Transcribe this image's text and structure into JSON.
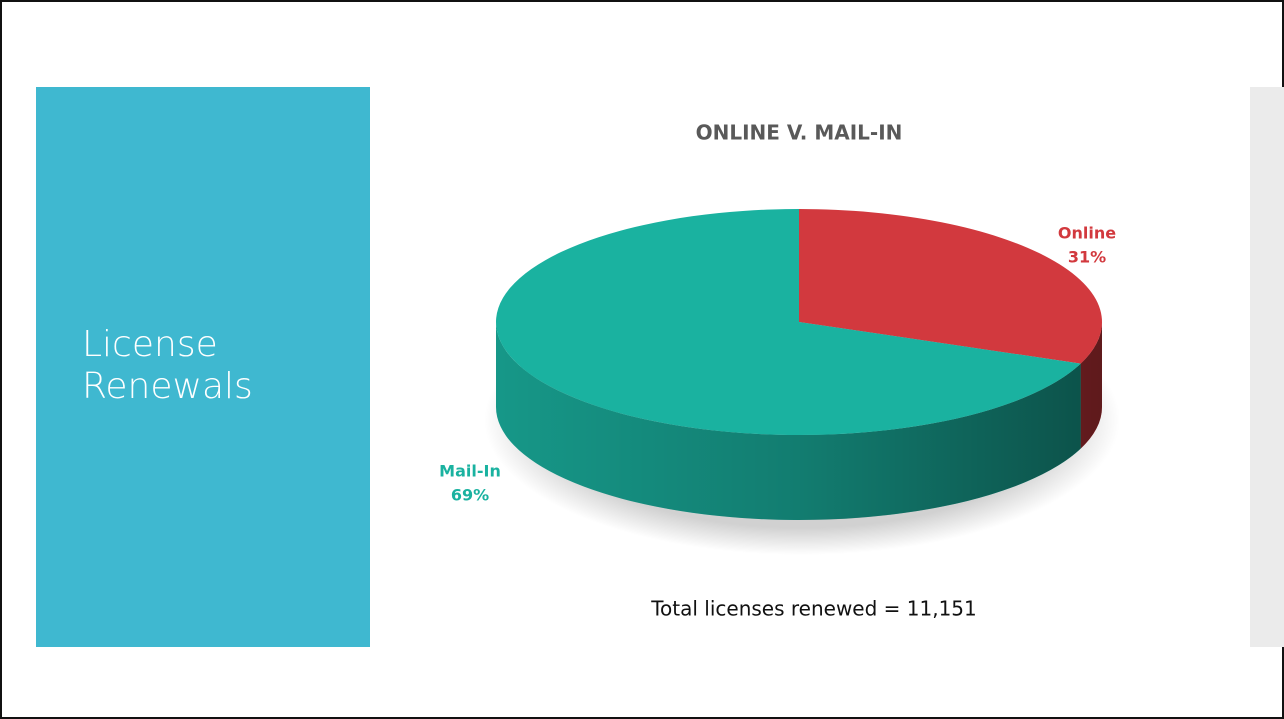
{
  "slide": {
    "title": "License Renewals",
    "note": "Total licenses renewed = 11,151"
  },
  "chart_data": {
    "type": "pie",
    "title": "ONLINE V. MAIL-IN",
    "categories": [
      "Online",
      "Mail-In"
    ],
    "values": [
      31,
      69
    ],
    "value_labels": [
      "31%",
      "69%"
    ],
    "colors": [
      "#d2393e",
      "#1ab2a0"
    ]
  }
}
